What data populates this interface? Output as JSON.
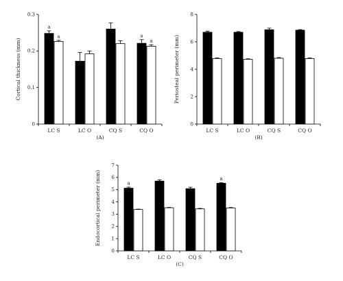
{
  "chart_data": [
    {
      "type": "bar",
      "panel_label": "(A)",
      "ylabel": "Cortical thickness (mm)",
      "ylim": [
        0,
        0.3
      ],
      "yticks": [
        "0",
        "0.1",
        "0.2",
        "0.3"
      ],
      "categories": [
        "LC S",
        "LC O",
        "CQ S",
        "CQ O"
      ],
      "series": [
        {
          "color": "#000000",
          "values": [
            0.248,
            0.172,
            0.26,
            0.221
          ],
          "errors": [
            0.007,
            0.024,
            0.017,
            0.01
          ]
        },
        {
          "color": "#ffffff",
          "values": [
            0.226,
            0.192,
            0.22,
            0.213
          ],
          "errors": [
            0.003,
            0.008,
            0.008,
            0.004
          ]
        }
      ],
      "annotations": [
        {
          "category": 0,
          "series": 0,
          "text": "a"
        },
        {
          "category": 0,
          "series": 1,
          "text": "a"
        },
        {
          "category": 3,
          "series": 0,
          "text": "a"
        },
        {
          "category": 3,
          "series": 1,
          "text": "a"
        }
      ]
    },
    {
      "type": "bar",
      "panel_label": "(B)",
      "ylabel": "Periosteal perimeter (mm)",
      "ylim": [
        0,
        8
      ],
      "yticks": [
        "0",
        "2",
        "4",
        "6",
        "8"
      ],
      "categories": [
        "LC S",
        "LC O",
        "CQ S",
        "CQ O"
      ],
      "series": [
        {
          "color": "#000000",
          "values": [
            6.7,
            6.7,
            6.88,
            6.85
          ],
          "errors": [
            0.08,
            0.05,
            0.12,
            0.04
          ]
        },
        {
          "color": "#ffffff",
          "values": [
            4.78,
            4.72,
            4.8,
            4.78
          ],
          "errors": [
            0.04,
            0.04,
            0.05,
            0.04
          ]
        }
      ],
      "annotations": []
    },
    {
      "type": "bar",
      "panel_label": "(C)",
      "ylabel": "Endocortical perimeter (mm)",
      "ylim": [
        0,
        7
      ],
      "yticks": [
        "0",
        "1",
        "2",
        "3",
        "4",
        "5",
        "6",
        "7"
      ],
      "categories": [
        "LC S",
        "LC O",
        "CQ S",
        "CQ O"
      ],
      "series": [
        {
          "color": "#000000",
          "values": [
            5.12,
            5.7,
            5.08,
            5.52
          ],
          "errors": [
            0.09,
            0.1,
            0.12,
            0.05
          ]
        },
        {
          "color": "#ffffff",
          "values": [
            3.38,
            3.52,
            3.43,
            3.5
          ],
          "errors": [
            0.03,
            0.03,
            0.04,
            0.04
          ]
        }
      ],
      "annotations": [
        {
          "category": 0,
          "series": 0,
          "text": "a"
        },
        {
          "category": 3,
          "series": 0,
          "text": "a"
        }
      ]
    }
  ]
}
